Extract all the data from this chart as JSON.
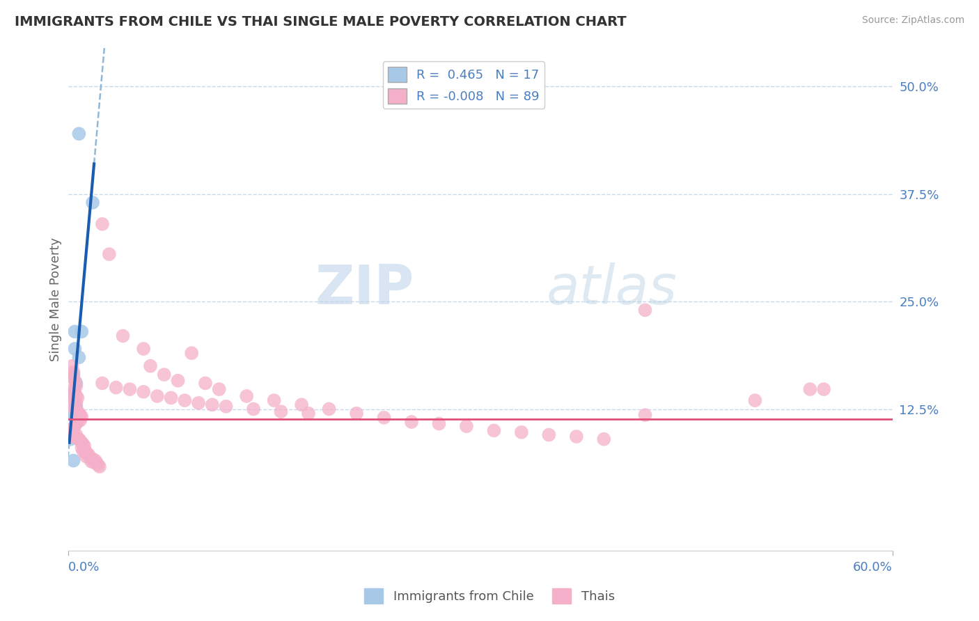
{
  "title": "IMMIGRANTS FROM CHILE VS THAI SINGLE MALE POVERTY CORRELATION CHART",
  "source": "Source: ZipAtlas.com",
  "ylabel": "Single Male Poverty",
  "xlim": [
    0.0,
    0.6
  ],
  "ylim": [
    -0.04,
    0.545
  ],
  "yticks": [
    0.0,
    0.125,
    0.25,
    0.375,
    0.5
  ],
  "ytick_labels": [
    "",
    "12.5%",
    "25.0%",
    "37.5%",
    "50.0%"
  ],
  "legend_r1": "R =  0.465",
  "legend_n1": "N = 17",
  "legend_r2": "R = -0.008",
  "legend_n2": "N = 89",
  "chile_color": "#a8c8e8",
  "thai_color": "#f4b0c8",
  "chile_line_color": "#1a5db0",
  "thai_line_color": "#e0507a",
  "trendline_dash_color": "#90b8d8",
  "watermark_zip": "ZIP",
  "watermark_atlas": "atlas",
  "background_color": "#ffffff",
  "grid_color": "#c8d8ec",
  "chile_scatter": [
    [
      0.008,
      0.445
    ],
    [
      0.018,
      0.365
    ],
    [
      0.005,
      0.215
    ],
    [
      0.01,
      0.215
    ],
    [
      0.005,
      0.195
    ],
    [
      0.008,
      0.185
    ],
    [
      0.004,
      0.165
    ],
    [
      0.006,
      0.155
    ],
    [
      0.004,
      0.145
    ],
    [
      0.003,
      0.138
    ],
    [
      0.005,
      0.132
    ],
    [
      0.006,
      0.128
    ],
    [
      0.004,
      0.12
    ],
    [
      0.003,
      0.118
    ],
    [
      0.003,
      0.1
    ],
    [
      0.002,
      0.09
    ],
    [
      0.004,
      0.065
    ]
  ],
  "thai_scatter": [
    [
      0.003,
      0.175
    ],
    [
      0.004,
      0.168
    ],
    [
      0.003,
      0.162
    ],
    [
      0.005,
      0.158
    ],
    [
      0.006,
      0.152
    ],
    [
      0.004,
      0.148
    ],
    [
      0.005,
      0.145
    ],
    [
      0.003,
      0.142
    ],
    [
      0.006,
      0.14
    ],
    [
      0.007,
      0.138
    ],
    [
      0.005,
      0.135
    ],
    [
      0.006,
      0.132
    ],
    [
      0.004,
      0.128
    ],
    [
      0.005,
      0.125
    ],
    [
      0.007,
      0.122
    ],
    [
      0.008,
      0.12
    ],
    [
      0.009,
      0.118
    ],
    [
      0.01,
      0.116
    ],
    [
      0.008,
      0.115
    ],
    [
      0.009,
      0.112
    ],
    [
      0.007,
      0.11
    ],
    [
      0.006,
      0.108
    ],
    [
      0.005,
      0.106
    ],
    [
      0.004,
      0.103
    ],
    [
      0.003,
      0.1
    ],
    [
      0.004,
      0.098
    ],
    [
      0.006,
      0.095
    ],
    [
      0.005,
      0.092
    ],
    [
      0.008,
      0.09
    ],
    [
      0.009,
      0.088
    ],
    [
      0.01,
      0.086
    ],
    [
      0.011,
      0.084
    ],
    [
      0.012,
      0.082
    ],
    [
      0.01,
      0.08
    ],
    [
      0.012,
      0.078
    ],
    [
      0.011,
      0.076
    ],
    [
      0.013,
      0.075
    ],
    [
      0.014,
      0.073
    ],
    [
      0.015,
      0.072
    ],
    [
      0.013,
      0.07
    ],
    [
      0.016,
      0.068
    ],
    [
      0.018,
      0.067
    ],
    [
      0.02,
      0.065
    ],
    [
      0.017,
      0.064
    ],
    [
      0.019,
      0.063
    ],
    [
      0.021,
      0.062
    ],
    [
      0.022,
      0.06
    ],
    [
      0.023,
      0.058
    ],
    [
      0.025,
      0.34
    ],
    [
      0.03,
      0.305
    ],
    [
      0.04,
      0.21
    ],
    [
      0.055,
      0.195
    ],
    [
      0.06,
      0.175
    ],
    [
      0.07,
      0.165
    ],
    [
      0.08,
      0.158
    ],
    [
      0.09,
      0.19
    ],
    [
      0.1,
      0.155
    ],
    [
      0.11,
      0.148
    ],
    [
      0.13,
      0.14
    ],
    [
      0.15,
      0.135
    ],
    [
      0.17,
      0.13
    ],
    [
      0.19,
      0.125
    ],
    [
      0.21,
      0.12
    ],
    [
      0.23,
      0.115
    ],
    [
      0.25,
      0.11
    ],
    [
      0.27,
      0.108
    ],
    [
      0.29,
      0.105
    ],
    [
      0.31,
      0.1
    ],
    [
      0.33,
      0.098
    ],
    [
      0.35,
      0.095
    ],
    [
      0.37,
      0.093
    ],
    [
      0.39,
      0.09
    ],
    [
      0.025,
      0.155
    ],
    [
      0.035,
      0.15
    ],
    [
      0.045,
      0.148
    ],
    [
      0.055,
      0.145
    ],
    [
      0.065,
      0.14
    ],
    [
      0.075,
      0.138
    ],
    [
      0.085,
      0.135
    ],
    [
      0.095,
      0.132
    ],
    [
      0.105,
      0.13
    ],
    [
      0.115,
      0.128
    ],
    [
      0.135,
      0.125
    ],
    [
      0.155,
      0.122
    ],
    [
      0.175,
      0.12
    ],
    [
      0.42,
      0.24
    ],
    [
      0.5,
      0.135
    ],
    [
      0.54,
      0.148
    ],
    [
      0.42,
      0.118
    ],
    [
      0.55,
      0.148
    ]
  ],
  "chile_trendline_x": [
    0.0,
    0.6
  ],
  "chile_trendline_slope": 18.0,
  "chile_trendline_intercept": 0.068,
  "thai_trendline_y": 0.113,
  "chile_solid_xrange": [
    0.001,
    0.019
  ]
}
